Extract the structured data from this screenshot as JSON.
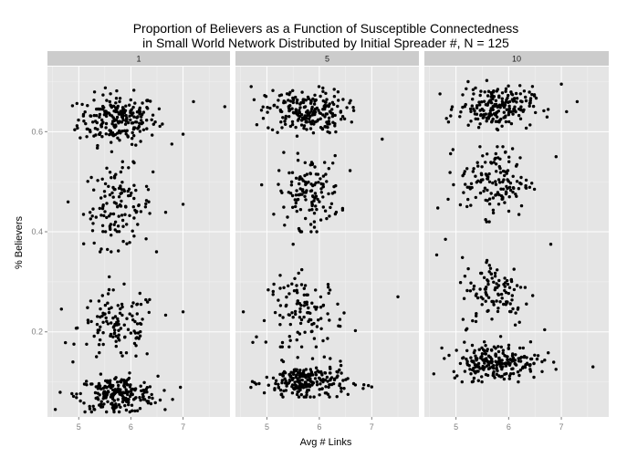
{
  "chart_data": {
    "type": "scatter",
    "title_line1": "Proportion of Believers as a Function of Susceptible Connectedness",
    "title_line2": "in Small World Network Distributed by Initial Spreader #, N = 125",
    "xlabel": "Avg # Links",
    "ylabel": "% Believers",
    "xlim": [
      4.4,
      7.9
    ],
    "ylim": [
      0.03,
      0.73
    ],
    "x_ticks": [
      5,
      6,
      7
    ],
    "y_ticks": [
      0.2,
      0.4,
      0.6
    ],
    "y_tick_labels": [
      "0.2",
      "0.4",
      "0.6"
    ],
    "grid": true,
    "facets": [
      {
        "label": "1",
        "clusters": [
          {
            "cx": 5.75,
            "cy": 0.625,
            "n": 220,
            "sx": 0.38,
            "sy": 0.025,
            "ymin": 0.56,
            "ymax": 0.69
          },
          {
            "cx": 5.75,
            "cy": 0.45,
            "n": 130,
            "sx": 0.33,
            "sy": 0.04,
            "ymin": 0.36,
            "ymax": 0.54
          },
          {
            "cx": 5.75,
            "cy": 0.21,
            "n": 120,
            "sx": 0.38,
            "sy": 0.035,
            "ymin": 0.14,
            "ymax": 0.31
          },
          {
            "cx": 5.75,
            "cy": 0.075,
            "n": 220,
            "sx": 0.38,
            "sy": 0.018,
            "ymin": 0.04,
            "ymax": 0.13
          }
        ],
        "outliers": [
          [
            7.2,
            0.66
          ],
          [
            7.8,
            0.65
          ],
          [
            7.0,
            0.595
          ],
          [
            7.0,
            0.455
          ],
          [
            7.0,
            0.24
          ],
          [
            4.55,
            0.045
          ],
          [
            6.8,
            0.065
          ]
        ]
      },
      {
        "label": "5",
        "clusters": [
          {
            "cx": 5.75,
            "cy": 0.64,
            "n": 210,
            "sx": 0.38,
            "sy": 0.022,
            "ymin": 0.57,
            "ymax": 0.69
          },
          {
            "cx": 5.8,
            "cy": 0.48,
            "n": 130,
            "sx": 0.3,
            "sy": 0.035,
            "ymin": 0.4,
            "ymax": 0.57
          },
          {
            "cx": 5.75,
            "cy": 0.24,
            "n": 110,
            "sx": 0.36,
            "sy": 0.035,
            "ymin": 0.17,
            "ymax": 0.33
          },
          {
            "cx": 5.75,
            "cy": 0.1,
            "n": 220,
            "sx": 0.4,
            "sy": 0.018,
            "ymin": 0.07,
            "ymax": 0.15
          }
        ],
        "outliers": [
          [
            5.5,
            0.375
          ],
          [
            4.55,
            0.24
          ],
          [
            7.5,
            0.27
          ],
          [
            4.7,
            0.69
          ],
          [
            7.2,
            0.585
          ],
          [
            7.0,
            0.09
          ],
          [
            4.8,
            0.19
          ]
        ]
      },
      {
        "label": "10",
        "clusters": [
          {
            "cx": 5.75,
            "cy": 0.65,
            "n": 200,
            "sx": 0.35,
            "sy": 0.02,
            "ymin": 0.58,
            "ymax": 0.71
          },
          {
            "cx": 5.75,
            "cy": 0.5,
            "n": 140,
            "sx": 0.33,
            "sy": 0.035,
            "ymin": 0.42,
            "ymax": 0.57
          },
          {
            "cx": 5.75,
            "cy": 0.28,
            "n": 110,
            "sx": 0.33,
            "sy": 0.035,
            "ymin": 0.19,
            "ymax": 0.36
          },
          {
            "cx": 5.75,
            "cy": 0.14,
            "n": 220,
            "sx": 0.42,
            "sy": 0.018,
            "ymin": 0.1,
            "ymax": 0.18
          }
        ],
        "outliers": [
          [
            7.6,
            0.13
          ],
          [
            4.8,
            0.385
          ],
          [
            7.0,
            0.695
          ],
          [
            7.3,
            0.66
          ],
          [
            6.8,
            0.375
          ],
          [
            6.9,
            0.55
          ],
          [
            7.1,
            0.64
          ],
          [
            4.85,
            0.465
          ]
        ]
      }
    ]
  }
}
